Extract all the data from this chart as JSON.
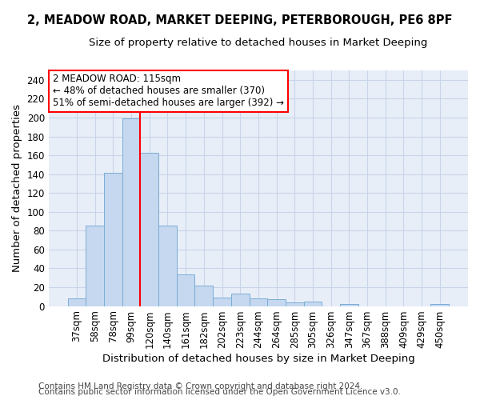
{
  "title_line1": "2, MEADOW ROAD, MARKET DEEPING, PETERBOROUGH, PE6 8PF",
  "title_line2": "Size of property relative to detached houses in Market Deeping",
  "xlabel": "Distribution of detached houses by size in Market Deeping",
  "ylabel": "Number of detached properties",
  "bar_labels": [
    "37sqm",
    "58sqm",
    "78sqm",
    "99sqm",
    "120sqm",
    "140sqm",
    "161sqm",
    "182sqm",
    "202sqm",
    "223sqm",
    "244sqm",
    "264sqm",
    "285sqm",
    "305sqm",
    "326sqm",
    "347sqm",
    "367sqm",
    "388sqm",
    "409sqm",
    "429sqm",
    "450sqm"
  ],
  "bar_values": [
    8,
    85,
    141,
    199,
    163,
    85,
    34,
    22,
    9,
    13,
    8,
    7,
    4,
    5,
    0,
    2,
    0,
    0,
    0,
    0,
    2
  ],
  "bar_color": "#c5d8f0",
  "bar_edge_color": "#7aadd4",
  "vline_x": 3.5,
  "vline_color": "red",
  "annotation_text": "2 MEADOW ROAD: 115sqm\n← 48% of detached houses are smaller (370)\n51% of semi-detached houses are larger (392) →",
  "annotation_box_color": "white",
  "annotation_box_edge_color": "red",
  "ylim": [
    0,
    250
  ],
  "yticks": [
    0,
    20,
    40,
    60,
    80,
    100,
    120,
    140,
    160,
    180,
    200,
    220,
    240
  ],
  "grid_color": "#c8d4e8",
  "background_color": "#e8eef8",
  "footer_line1": "Contains HM Land Registry data © Crown copyright and database right 2024.",
  "footer_line2": "Contains public sector information licensed under the Open Government Licence v3.0.",
  "title1_fontsize": 10.5,
  "title2_fontsize": 9.5,
  "axis_label_fontsize": 9.5,
  "tick_fontsize": 8.5,
  "annotation_fontsize": 8.5,
  "footer_fontsize": 7.5
}
